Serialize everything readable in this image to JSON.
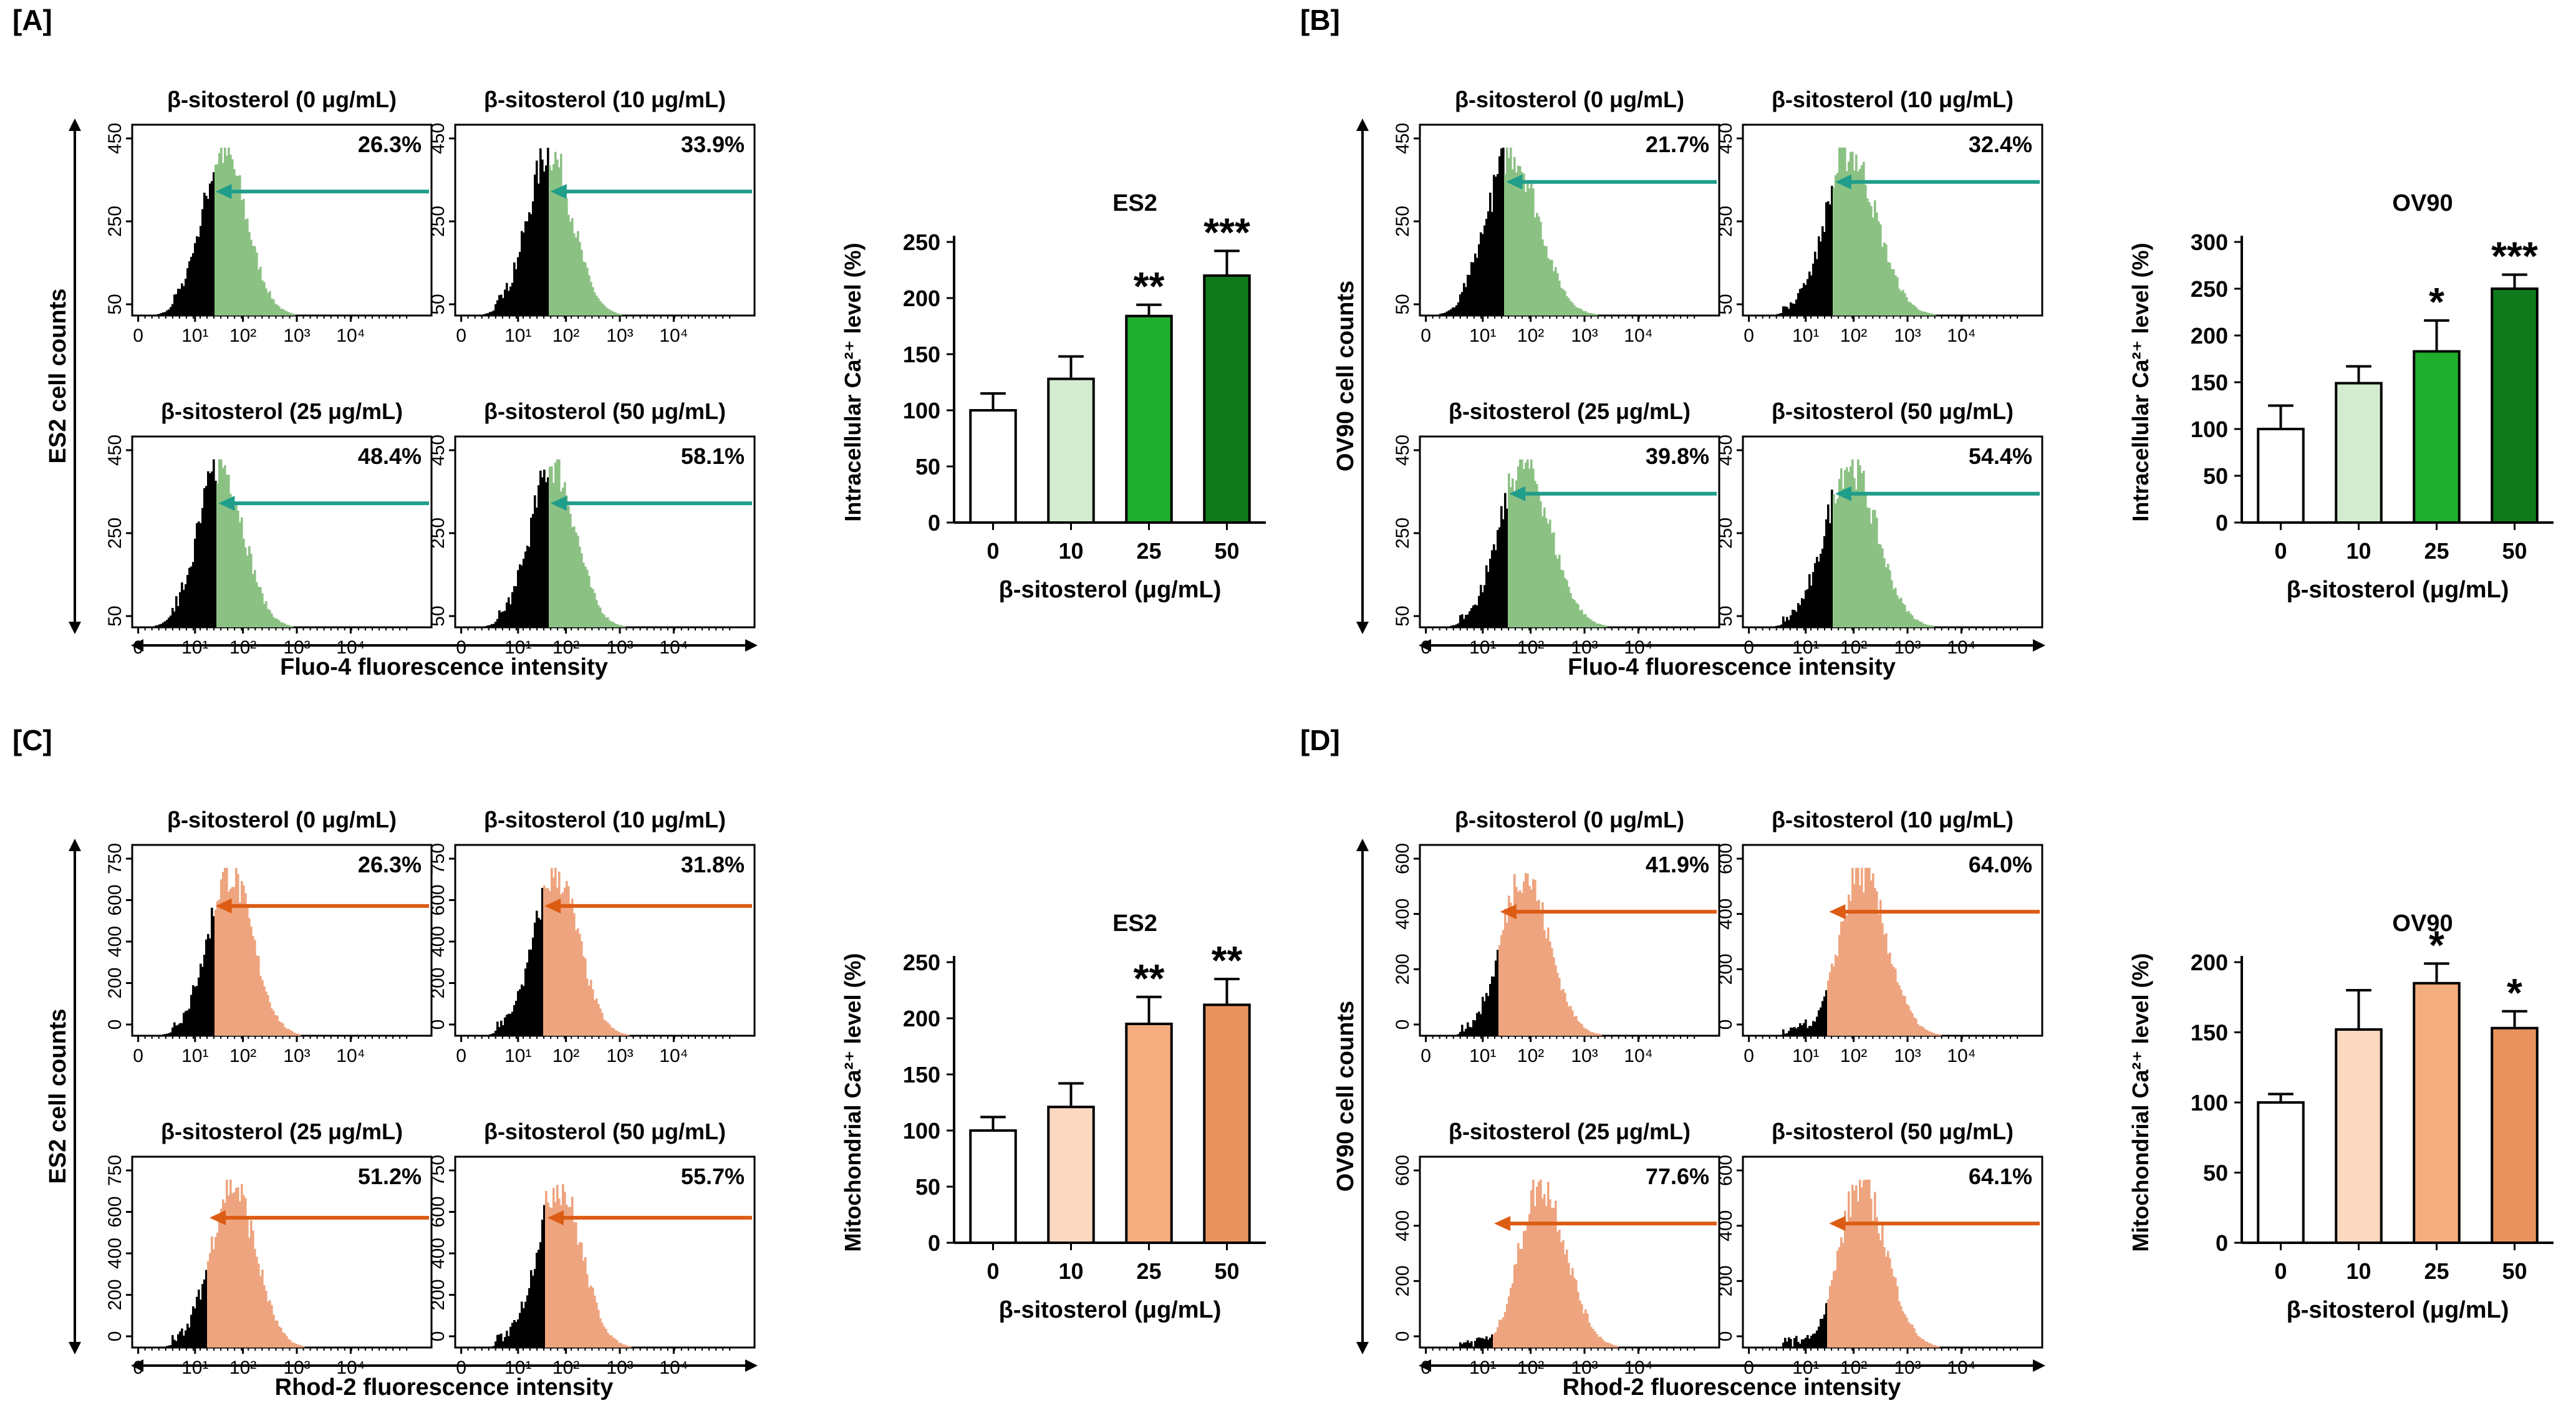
{
  "panels": [
    {
      "tag": "[A]",
      "cell_axis_label": "ES2 cell counts",
      "fluor_axis_label": "Fluo-4 fluorescence intensity",
      "hist_theme": "green",
      "y_ticks": [
        "50",
        "250",
        "450"
      ],
      "x_ticks": [
        "0",
        "10¹",
        "10²",
        "10³",
        "10⁴"
      ],
      "histograms": [
        {
          "title": "β-sitosterol (0 μg/mL)",
          "pct": "26.3%"
        },
        {
          "title": "β-sitosterol (10 μg/mL)",
          "pct": "33.9%"
        },
        {
          "title": "β-sitosterol (25 μg/mL)",
          "pct": "48.4%"
        },
        {
          "title": "β-sitosterol (50 μg/mL)",
          "pct": "58.1%"
        }
      ]
    },
    {
      "tag": "[B]",
      "cell_axis_label": "OV90 cell counts",
      "fluor_axis_label": "Fluo-4 fluorescence intensity",
      "hist_theme": "green",
      "y_ticks": [
        "50",
        "250",
        "450"
      ],
      "x_ticks": [
        "0",
        "10¹",
        "10²",
        "10³",
        "10⁴"
      ],
      "histograms": [
        {
          "title": "β-sitosterol (0 μg/mL)",
          "pct": "21.7%"
        },
        {
          "title": "β-sitosterol (10 μg/mL)",
          "pct": "32.4%"
        },
        {
          "title": "β-sitosterol (25 μg/mL)",
          "pct": "39.8%"
        },
        {
          "title": "β-sitosterol (50 μg/mL)",
          "pct": "54.4%"
        }
      ]
    },
    {
      "tag": "[C]",
      "cell_axis_label": "ES2 cell counts",
      "fluor_axis_label": "Rhod-2 fluorescence intensity",
      "hist_theme": "orange",
      "y_ticks": [
        "0",
        "200",
        "400",
        "600",
        "750"
      ],
      "x_ticks": [
        "0",
        "10¹",
        "10²",
        "10³",
        "10⁴"
      ],
      "histograms": [
        {
          "title": "β-sitosterol (0 μg/mL)",
          "pct": "26.3%"
        },
        {
          "title": "β-sitosterol (10 μg/mL)",
          "pct": "31.8%"
        },
        {
          "title": "β-sitosterol (25 μg/mL)",
          "pct": "51.2%"
        },
        {
          "title": "β-sitosterol (50 μg/mL)",
          "pct": "55.7%"
        }
      ]
    },
    {
      "tag": "[D]",
      "cell_axis_label": "OV90 cell counts",
      "fluor_axis_label": "Rhod-2 fluorescence intensity",
      "hist_theme": "orange",
      "y_ticks": [
        "0",
        "200",
        "400",
        "600"
      ],
      "x_ticks": [
        "0",
        "10¹",
        "10²",
        "10³",
        "10⁴"
      ],
      "histograms": [
        {
          "title": "β-sitosterol (0 μg/mL)",
          "pct": "41.9%"
        },
        {
          "title": "β-sitosterol (10 μg/mL)",
          "pct": "64.0%"
        },
        {
          "title": "β-sitosterol (25 μg/mL)",
          "pct": "77.6%"
        },
        {
          "title": "β-sitosterol (50 μg/mL)",
          "pct": "64.1%"
        }
      ]
    }
  ],
  "colors": {
    "green_gate": "#8cc184",
    "green_arrow": "#1f9e8a",
    "orange_gate": "#eea47e",
    "orange_arrow": "#dc5c14",
    "green_bars": [
      "#ffffff",
      "#d3ecd0",
      "#1fae2d",
      "#0f7a1a"
    ],
    "orange_bars": [
      "#ffffff",
      "#fbd8c0",
      "#f4ad7e",
      "#e8935e"
    ]
  },
  "chart_data": [
    {
      "panel": "[A]",
      "type": "bar",
      "title": "ES2",
      "categories": [
        "0",
        "10",
        "25",
        "50"
      ],
      "values": [
        100,
        128,
        184,
        220
      ],
      "errors": [
        15,
        20,
        10,
        22
      ],
      "significance": [
        "",
        "",
        "**",
        "***"
      ],
      "xlabel": "β-sitosterol (μg/mL)",
      "ylabel": "Intracellular Ca²⁺ level (%)",
      "ylim": [
        0,
        250
      ],
      "yticks": [
        0,
        50,
        100,
        150,
        200,
        250
      ],
      "ytick_labels": [
        "0",
        "50",
        "100",
        "150",
        "200",
        "250"
      ]
    },
    {
      "panel": "[B]",
      "type": "bar",
      "title": "OV90",
      "categories": [
        "0",
        "10",
        "25",
        "50"
      ],
      "values": [
        100,
        149,
        183,
        250
      ],
      "errors": [
        25,
        18,
        33,
        15
      ],
      "significance": [
        "",
        "",
        "*",
        "***"
      ],
      "xlabel": "β-sitosterol (μg/mL)",
      "ylabel": "Intracellular Ca²⁺ level (%)",
      "ylim": [
        0,
        300
      ],
      "yticks": [
        0,
        50,
        100,
        150,
        200,
        250,
        300
      ],
      "ytick_labels": [
        "0",
        "50",
        "100",
        "150",
        "200",
        "250",
        "300"
      ]
    },
    {
      "panel": "[C]",
      "type": "bar",
      "title": "ES2",
      "categories": [
        "0",
        "10",
        "25",
        "50"
      ],
      "values": [
        100,
        121,
        195,
        212
      ],
      "errors": [
        12,
        21,
        24,
        23
      ],
      "significance": [
        "",
        "",
        "**",
        "**"
      ],
      "xlabel": "β-sitosterol (μg/mL)",
      "ylabel": "Mitochondrial Ca²⁺ level (%)",
      "ylim": [
        0,
        250
      ],
      "yticks": [
        0,
        50,
        100,
        150,
        200,
        250
      ],
      "ytick_labels": [
        "0",
        "50",
        "100",
        "150",
        "200",
        "250"
      ]
    },
    {
      "panel": "[D]",
      "type": "bar",
      "title": "OV90",
      "categories": [
        "0",
        "10",
        "25",
        "50"
      ],
      "values": [
        100,
        152,
        185,
        153
      ],
      "errors": [
        6,
        28,
        14,
        12
      ],
      "significance": [
        "",
        "",
        "*",
        "*"
      ],
      "xlabel": "β-sitosterol (μg/mL)",
      "ylabel": "Mitochondrial Ca²⁺ level (%)",
      "ylim": [
        0,
        200
      ],
      "yticks": [
        0,
        50,
        100,
        150,
        200
      ],
      "ytick_labels": [
        "0",
        "50",
        "100",
        "150",
        "200"
      ]
    }
  ]
}
